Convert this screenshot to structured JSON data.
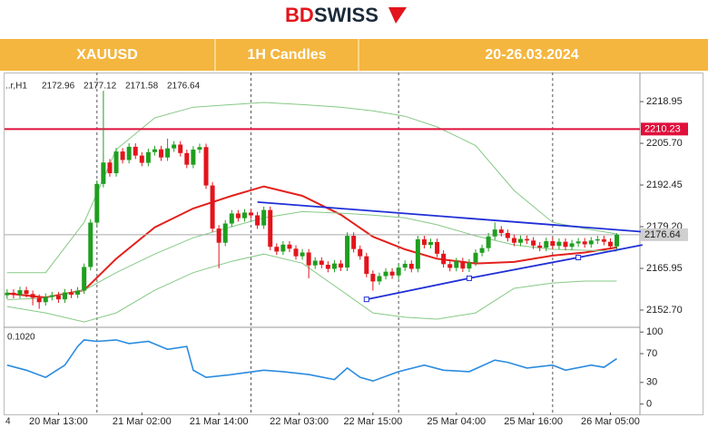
{
  "header": {
    "logo_bd": "BD",
    "logo_swiss": "SWISS",
    "symbol": "XAUUSD",
    "timeframe": "1H Candles",
    "period": "20-26.03.2024"
  },
  "chart_data": {
    "type": "candlestick",
    "symbol_label": "..r,H1",
    "ohlc_header": [
      2172.96,
      2177.12,
      2171.58,
      2176.64
    ],
    "up_color": "#1f9e1f",
    "down_color": "#e3141c",
    "candles": {
      "open": [
        2157.4,
        2158.2,
        2157.5,
        2159.0,
        2157.8,
        2156.6,
        2155.2,
        2156.9,
        2157.4,
        2156.1,
        2158.3,
        2157.6,
        2158.9,
        2166.4,
        2180.5,
        2192.8,
        2199.6,
        2196.2,
        2203.1,
        2200.4,
        2204.6,
        2201.8,
        2199.5,
        2202.9,
        2203.8,
        2201.2,
        2204.1,
        2205.3,
        2202.6,
        2198.9,
        2203.7,
        2204.5,
        2192.3,
        2178.6,
        2174.1,
        2180.2,
        2183.4,
        2181.9,
        2183.7,
        2182.8,
        2179.6,
        2184.5,
        2172.8,
        2171.3,
        2173.5,
        2172.2,
        2169.8,
        2171.0,
        2166.9,
        2168.4,
        2167.1,
        2165.8,
        2167.5,
        2166.2,
        2176.3,
        2172.1,
        2169.8,
        2164.2,
        2161.8,
        2163.5,
        2164.9,
        2163.7,
        2166.2,
        2167.4,
        2165.8,
        2175.2,
        2173.4,
        2174.3,
        2170.6,
        2167.3,
        2166.1,
        2168.2,
        2165.9,
        2167.8,
        2170.9,
        2172.4,
        2176.1,
        2178.3,
        2177.2,
        2175.6,
        2174.1,
        2175.3,
        2174.8,
        2173.2,
        2172.5,
        2174.6,
        2173.1,
        2174.4,
        2172.8,
        2173.9,
        2174.5,
        2173.6,
        2174.8,
        2175.2,
        2174.4,
        2172.96
      ],
      "high": [
        2159.3,
        2159.3,
        2160.1,
        2160.1,
        2158.9,
        2157.7,
        2158.0,
        2158.5,
        2158.5,
        2159.4,
        2159.4,
        2160.0,
        2167.5,
        2181.6,
        2193.9,
        2222.4,
        2200.7,
        2204.2,
        2204.2,
        2205.7,
        2205.7,
        2202.9,
        2204.0,
        2204.9,
        2204.9,
        2207.2,
        2206.4,
        2206.4,
        2203.7,
        2204.8,
        2205.6,
        2205.6,
        2193.4,
        2179.7,
        2181.3,
        2184.5,
        2184.5,
        2184.8,
        2184.8,
        2183.9,
        2185.6,
        2185.6,
        2173.9,
        2174.6,
        2174.6,
        2173.3,
        2172.1,
        2172.1,
        2169.5,
        2169.5,
        2168.2,
        2168.6,
        2168.6,
        2177.4,
        2177.4,
        2173.2,
        2170.9,
        2165.3,
        2164.6,
        2166.0,
        2166.0,
        2167.3,
        2168.5,
        2168.5,
        2176.3,
        2176.3,
        2175.4,
        2175.4,
        2171.7,
        2168.4,
        2169.3,
        2169.3,
        2168.9,
        2172.0,
        2173.5,
        2177.2,
        2180.6,
        2179.4,
        2178.3,
        2176.7,
        2176.4,
        2176.4,
        2175.9,
        2174.3,
        2175.7,
        2175.7,
        2175.5,
        2175.5,
        2175.0,
        2175.6,
        2175.6,
        2175.9,
        2176.3,
        2176.3,
        2175.5,
        2177.12
      ],
      "low": [
        2156.3,
        2156.4,
        2156.4,
        2156.7,
        2154.2,
        2153.1,
        2154.1,
        2155.8,
        2155.0,
        2155.0,
        2156.5,
        2156.5,
        2157.8,
        2165.3,
        2179.4,
        2191.7,
        2195.1,
        2195.1,
        2199.3,
        2199.3,
        2200.7,
        2198.4,
        2198.4,
        2201.8,
        2200.1,
        2200.1,
        2203.0,
        2201.5,
        2197.8,
        2197.8,
        2202.6,
        2191.2,
        2177.5,
        2166.0,
        2173.0,
        2179.1,
        2180.8,
        2180.8,
        2181.7,
        2178.5,
        2178.5,
        2171.7,
        2170.2,
        2170.2,
        2171.1,
        2168.7,
        2168.7,
        2162.8,
        2165.8,
        2166.0,
        2164.7,
        2164.7,
        2165.1,
        2165.1,
        2171.0,
        2168.7,
        2163.1,
        2158.9,
        2160.7,
        2162.4,
        2162.6,
        2162.6,
        2165.1,
        2164.7,
        2164.7,
        2172.3,
        2172.3,
        2169.5,
        2166.2,
        2165.0,
        2165.0,
        2164.8,
        2164.8,
        2166.7,
        2169.8,
        2171.3,
        2175.0,
        2176.1,
        2174.5,
        2173.0,
        2173.0,
        2173.7,
        2172.1,
        2171.4,
        2171.4,
        2172.0,
        2172.0,
        2171.7,
        2171.7,
        2172.8,
        2172.5,
        2172.5,
        2173.7,
        2173.3,
        2171.9,
        2171.58
      ],
      "close": [
        2158.2,
        2157.5,
        2159.0,
        2157.8,
        2156.6,
        2155.2,
        2156.9,
        2157.4,
        2156.1,
        2158.3,
        2157.6,
        2158.9,
        2166.4,
        2180.5,
        2192.8,
        2199.6,
        2196.2,
        2203.1,
        2200.4,
        2204.6,
        2201.8,
        2199.5,
        2202.9,
        2203.8,
        2201.2,
        2204.1,
        2205.3,
        2202.6,
        2198.9,
        2203.7,
        2204.5,
        2192.3,
        2178.6,
        2174.1,
        2180.2,
        2183.4,
        2181.9,
        2183.7,
        2182.8,
        2179.6,
        2184.5,
        2172.8,
        2171.3,
        2173.5,
        2172.2,
        2169.8,
        2171.0,
        2166.9,
        2168.4,
        2167.1,
        2165.8,
        2167.5,
        2166.2,
        2176.3,
        2172.1,
        2169.8,
        2164.2,
        2161.8,
        2163.5,
        2164.9,
        2163.7,
        2166.2,
        2167.4,
        2165.8,
        2175.2,
        2173.4,
        2174.3,
        2170.6,
        2167.3,
        2166.1,
        2168.2,
        2165.9,
        2167.8,
        2170.9,
        2172.4,
        2176.1,
        2178.3,
        2177.2,
        2175.6,
        2174.1,
        2175.3,
        2174.8,
        2173.2,
        2172.5,
        2174.6,
        2173.1,
        2174.4,
        2172.8,
        2173.9,
        2174.5,
        2173.6,
        2174.8,
        2175.2,
        2174.4,
        2172.96,
        2176.64
      ]
    },
    "xlim": [
      -0.4,
      98.6
    ],
    "ylim": [
      2147.5,
      2228.2
    ],
    "yticks": [
      {
        "value": 2152.7,
        "label": "2152.70"
      },
      2165.95,
      {
        "value": 2179.2,
        "label": "2179.20"
      },
      2192.45,
      {
        "value": 2205.7,
        "label": "2205.70"
      },
      2218.95
    ],
    "xticks": [
      {
        "value": 8,
        "label": "20 Mar 13:00"
      },
      {
        "value": 21,
        "label": "21 Mar 02:00"
      },
      {
        "value": 33,
        "label": "21 Mar 14:00"
      },
      {
        "value": 45.5,
        "label": "22 Mar 03:00"
      },
      {
        "value": 57,
        "label": "22 Mar 15:00"
      },
      {
        "value": 70,
        "label": "25 Mar 04:00"
      },
      {
        "value": 82,
        "label": "25 Mar 16:00"
      },
      {
        "value": 94,
        "label": "26 Mar 05:00"
      }
    ],
    "x_edge_label": "4",
    "separators": [
      14,
      38,
      61,
      85
    ],
    "indicator_x": [
      0,
      6,
      12,
      17,
      23,
      29,
      35,
      40,
      46,
      52,
      57,
      62,
      67,
      73,
      79,
      85,
      90,
      95
    ],
    "indicators": [
      {
        "color": "#e3211c",
        "width": 2,
        "values": [
          2158.0,
          2156.7,
          2159.0,
          2169.0,
          2179.0,
          2185.0,
          2189.0,
          2192.0,
          2189.0,
          2183.0,
          2176.0,
          2172.0,
          2169.0,
          2167.5,
          2168.0,
          2170.0,
          2171.0,
          2172.6
        ]
      },
      {
        "color": "#86c986",
        "width": 1,
        "values": [
          2164.6,
          2164.6,
          2180.6,
          2203.7,
          2213.8,
          2217.2,
          2218.0,
          2218.7,
          2218.0,
          2217.2,
          2216.0,
          2214.3,
          2210.9,
          2205.0,
          2190.7,
          2180.6,
          2178.6,
          2176.9
        ]
      },
      {
        "color": "#86c986",
        "width": 1,
        "values": [
          2156.0,
          2156.5,
          2159.0,
          2164.6,
          2170.5,
          2175.7,
          2179.2,
          2182.0,
          2184.0,
          2183.5,
          2182.9,
          2182.0,
          2179.8,
          2176.3,
          2173.4,
          2172.0,
          2171.7,
          2171.4
        ]
      },
      {
        "color": "#86c986",
        "width": 1,
        "values": [
          2153.8,
          2151.8,
          2148.9,
          2151.8,
          2159.0,
          2164.6,
          2168.2,
          2170.5,
          2167.6,
          2159.0,
          2151.8,
          2150.4,
          2149.8,
          2151.8,
          2159.6,
          2161.3,
          2161.9,
          2161.9
        ]
      }
    ],
    "trendlines": [
      {
        "color": "#1f2fd6",
        "x": [
          39,
          99
        ],
        "y": [
          2187.0,
          2177.6
        ],
        "markers": false
      },
      {
        "color": "#1f2fd6",
        "x": [
          56,
          72,
          89,
          99
        ],
        "y": [
          2156.1,
          2162.8,
          2169.4,
          2173.4
        ],
        "markers": true
      }
    ],
    "level": {
      "value": 2210.23,
      "color": "#e0103c"
    },
    "last_price": 2176.64,
    "rsi": {
      "label": "0.1020",
      "color": "#2a8be0",
      "ylim": [
        -11.8,
        105.3
      ],
      "yticks": [
        100,
        70,
        30,
        0
      ],
      "x": [
        0,
        3,
        6,
        9,
        11,
        12,
        14,
        17,
        19,
        22,
        25,
        28,
        29,
        31,
        35,
        40,
        43,
        47,
        51,
        53,
        55,
        57,
        61,
        65,
        68,
        72,
        76,
        78,
        81,
        85,
        87,
        91,
        93,
        95
      ],
      "values": [
        54,
        47,
        37,
        54,
        80,
        89,
        87,
        89,
        84,
        87,
        76,
        80,
        47,
        37,
        41,
        47,
        45,
        41,
        34,
        50,
        37,
        32,
        45,
        54,
        47,
        45,
        61,
        58,
        50,
        54,
        47,
        54,
        51,
        63
      ]
    }
  }
}
